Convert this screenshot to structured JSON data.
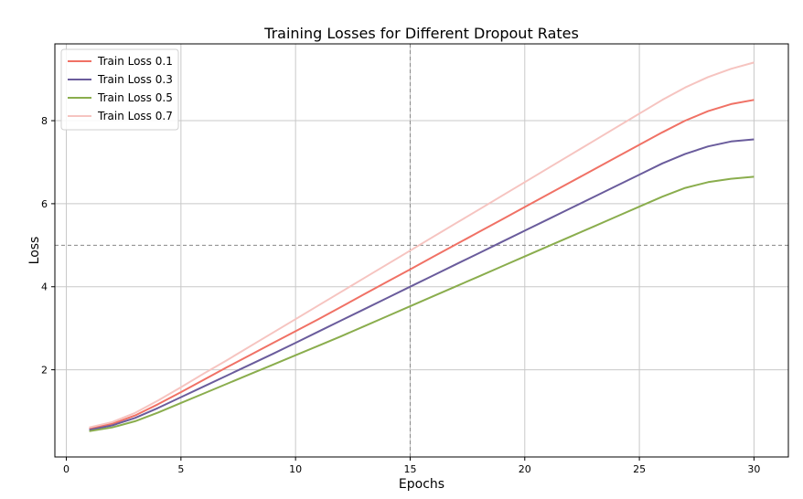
{
  "chart_data": {
    "type": "line",
    "title": "Training Losses for Different Dropout Rates",
    "xlabel": "Epochs",
    "ylabel": "Loss",
    "xlim": [
      -0.5,
      31.5
    ],
    "ylim": [
      -0.1,
      9.85
    ],
    "xticks": [
      0,
      5,
      10,
      15,
      20,
      25,
      30
    ],
    "yticks": [
      2,
      4,
      6,
      8
    ],
    "grid": true,
    "legend_position": "top-left",
    "reference_lines": [
      {
        "orientation": "vertical",
        "value": 15,
        "style": "dashed"
      },
      {
        "orientation": "horizontal",
        "value": 5,
        "style": "dashed"
      }
    ],
    "x": [
      1,
      2,
      3,
      4,
      5,
      6,
      7,
      8,
      9,
      10,
      11,
      12,
      13,
      14,
      15,
      16,
      17,
      18,
      19,
      20,
      21,
      22,
      23,
      24,
      25,
      26,
      27,
      28,
      29,
      30
    ],
    "series": [
      {
        "name": "Train Loss 0.1",
        "color": "#f07165",
        "values": [
          0.58,
          0.7,
          0.9,
          1.17,
          1.46,
          1.76,
          2.06,
          2.35,
          2.64,
          2.93,
          3.22,
          3.52,
          3.82,
          4.12,
          4.42,
          4.72,
          5.02,
          5.32,
          5.62,
          5.92,
          6.22,
          6.52,
          6.82,
          7.12,
          7.42,
          7.72,
          8.0,
          8.23,
          8.4,
          8.5
        ]
      },
      {
        "name": "Train Loss 0.3",
        "color": "#6a5c9c",
        "values": [
          0.55,
          0.66,
          0.84,
          1.08,
          1.34,
          1.6,
          1.86,
          2.12,
          2.38,
          2.65,
          2.92,
          3.19,
          3.46,
          3.73,
          4.0,
          4.27,
          4.54,
          4.81,
          5.08,
          5.35,
          5.62,
          5.89,
          6.16,
          6.43,
          6.7,
          6.97,
          7.2,
          7.38,
          7.5,
          7.55
        ]
      },
      {
        "name": "Train Loss 0.5",
        "color": "#8aad4d",
        "values": [
          0.52,
          0.61,
          0.76,
          0.97,
          1.2,
          1.43,
          1.66,
          1.89,
          2.12,
          2.35,
          2.58,
          2.81,
          3.05,
          3.29,
          3.53,
          3.77,
          4.01,
          4.25,
          4.49,
          4.73,
          4.97,
          5.21,
          5.45,
          5.69,
          5.93,
          6.17,
          6.38,
          6.52,
          6.6,
          6.65
        ]
      },
      {
        "name": "Train Loss 0.7",
        "color": "#f6c4c0",
        "values": [
          0.61,
          0.74,
          0.96,
          1.26,
          1.58,
          1.91,
          2.23,
          2.56,
          2.89,
          3.22,
          3.55,
          3.88,
          4.21,
          4.54,
          4.87,
          5.2,
          5.53,
          5.86,
          6.19,
          6.52,
          6.85,
          7.18,
          7.51,
          7.84,
          8.17,
          8.5,
          8.8,
          9.05,
          9.25,
          9.4
        ]
      }
    ]
  }
}
